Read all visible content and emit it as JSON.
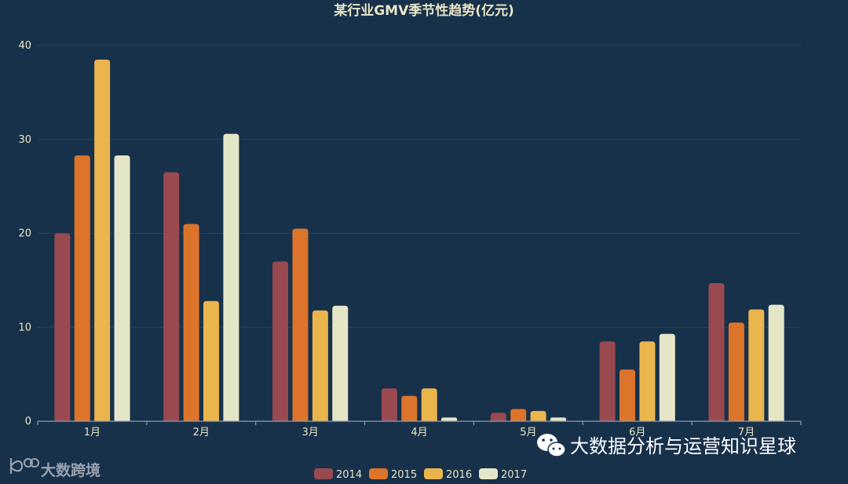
{
  "chart_data": {
    "type": "bar",
    "title": "某行业GMV季节性趋势(亿元)",
    "categories": [
      "1月",
      "2月",
      "3月",
      "4月",
      "5月",
      "6月",
      "7月"
    ],
    "ylim": [
      0,
      40
    ],
    "yticks": [
      0,
      10,
      20,
      30,
      40
    ],
    "grid": true,
    "legend_position": "bottom-center",
    "series": [
      {
        "name": "2014",
        "color": "#994a50",
        "values": [
          20,
          26.5,
          17,
          3.5,
          0.9,
          8.5,
          14.7
        ]
      },
      {
        "name": "2015",
        "color": "#dd742c",
        "values": [
          28.3,
          21,
          20.5,
          2.7,
          1.3,
          5.5,
          10.5
        ]
      },
      {
        "name": "2016",
        "color": "#eab54c",
        "values": [
          38.5,
          12.8,
          11.8,
          3.5,
          1.1,
          8.5,
          11.9
        ]
      },
      {
        "name": "2017",
        "color": "#e5e6c8",
        "values": [
          28.3,
          30.6,
          12.3,
          0.4,
          0.4,
          9.3,
          12.4
        ]
      }
    ]
  },
  "watermarks": {
    "bottom_left": "大数跨境",
    "bottom_right": "大数据分析与运营知识星球",
    "wechat_icon": "wechat-icon"
  }
}
